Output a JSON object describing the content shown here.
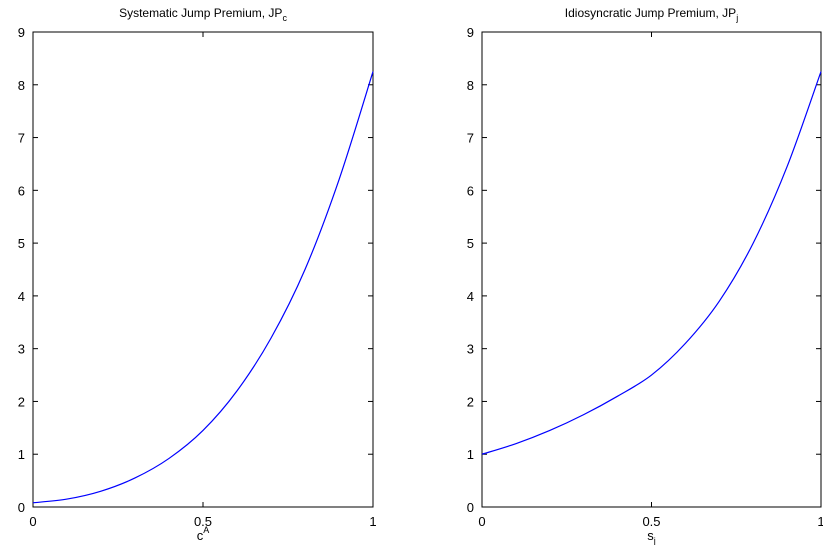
{
  "chart_data": [
    {
      "type": "line",
      "title": "Systematic Jump Premium, JP",
      "title_sub": "c",
      "xlabel": "c",
      "xlabel_sup": "A",
      "xlim": [
        0,
        1
      ],
      "ylim": [
        0,
        9
      ],
      "xticks": [
        0,
        0.5,
        1
      ],
      "yticks": [
        0,
        1,
        2,
        3,
        4,
        5,
        6,
        7,
        8,
        9
      ],
      "xtick_labels": [
        "0",
        "0.5",
        "1"
      ],
      "ytick_labels": [
        "0",
        "1",
        "2",
        "3",
        "4",
        "5",
        "6",
        "7",
        "8",
        "9"
      ],
      "color": "#0000ff",
      "series": [
        {
          "x": [
            0,
            0.1,
            0.2,
            0.3,
            0.4,
            0.5,
            0.6,
            0.7,
            0.8,
            0.9,
            1.0
          ],
          "y": [
            0.08,
            0.15,
            0.3,
            0.55,
            0.92,
            1.45,
            2.2,
            3.2,
            4.5,
            6.2,
            8.25
          ]
        }
      ]
    },
    {
      "type": "line",
      "title": "Idiosyncratic Jump Premium, JP",
      "title_sub": "j",
      "xlabel": "s",
      "xlabel_sub": "j",
      "xlim": [
        0,
        1
      ],
      "ylim": [
        0,
        9
      ],
      "xticks": [
        0,
        0.5,
        1
      ],
      "yticks": [
        0,
        1,
        2,
        3,
        4,
        5,
        6,
        7,
        8,
        9
      ],
      "xtick_labels": [
        "0",
        "0.5",
        "1"
      ],
      "ytick_labels": [
        "0",
        "1",
        "2",
        "3",
        "4",
        "5",
        "6",
        "7",
        "8",
        "9"
      ],
      "color": "#0000ff",
      "series": [
        {
          "x": [
            0,
            0.1,
            0.2,
            0.3,
            0.4,
            0.5,
            0.6,
            0.7,
            0.8,
            0.9,
            1.0
          ],
          "y": [
            1.0,
            1.2,
            1.45,
            1.75,
            2.1,
            2.5,
            3.1,
            3.9,
            5.0,
            6.45,
            8.25
          ]
        }
      ]
    }
  ]
}
